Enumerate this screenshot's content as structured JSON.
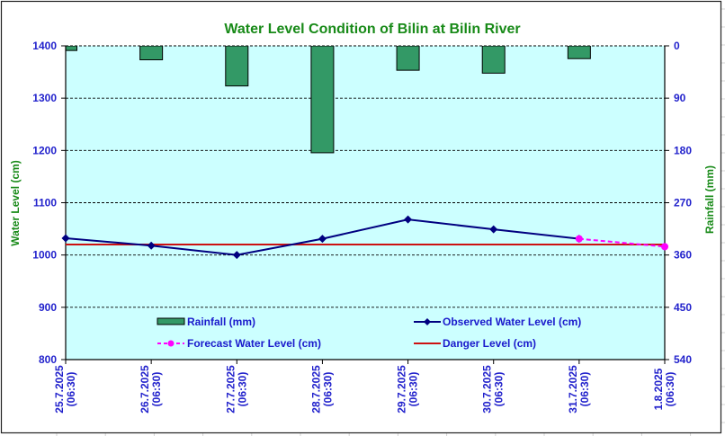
{
  "chart_data": {
    "type": "bar+line",
    "title": "Water Level Condition of Bilin at Bilin River",
    "ylabel": "Water Level (cm)",
    "y2label": "Rainfall (mm)",
    "xlabel": "",
    "ylim": [
      800,
      1400
    ],
    "yticks": [
      1400,
      1300,
      1200,
      1100,
      1000,
      900,
      800
    ],
    "y2lim": [
      0,
      540
    ],
    "y2_inverted": true,
    "y2ticks": [
      0,
      90,
      180,
      270,
      360,
      450,
      540
    ],
    "grid": true,
    "legend_position": "inside-bottom",
    "categories": [
      {
        "date": "25.7.2025",
        "time": "(06:30)"
      },
      {
        "date": "26.7.2025",
        "time": "(06:30)"
      },
      {
        "date": "27.7.2025",
        "time": "(06:30)"
      },
      {
        "date": "28.7.2025",
        "time": "(06:30)"
      },
      {
        "date": "29.7.2025",
        "time": "(06:30)"
      },
      {
        "date": "30.7.2025",
        "time": "(06:30)"
      },
      {
        "date": "31.7.2025",
        "time": "(06:30)"
      },
      {
        "date": "1.8.2025",
        "time": "(06:30)"
      }
    ],
    "series": [
      {
        "name": "Rainfall (mm)",
        "kind": "bar",
        "axis": "right",
        "color": "#339966",
        "values": [
          8,
          24,
          69,
          184,
          42,
          47,
          22,
          null
        ]
      },
      {
        "name": "Observed Water Level (cm)",
        "kind": "line",
        "axis": "left",
        "color": "#000080",
        "marker": "diamond",
        "values": [
          1032,
          1018,
          1000,
          1031,
          1068,
          1049,
          1031,
          null
        ]
      },
      {
        "name": "Forecast Water Level (cm)",
        "kind": "dashed-line",
        "axis": "left",
        "color": "#FF00FF",
        "marker": "circle",
        "values": [
          null,
          null,
          null,
          null,
          null,
          null,
          1031,
          1016
        ]
      },
      {
        "name": "Danger Level (cm)",
        "kind": "constant-line",
        "axis": "left",
        "color": "#CC1111",
        "value": 1020
      }
    ],
    "legend": [
      {
        "label": "Rainfall (mm)",
        "series": 0
      },
      {
        "label": "Observed Water Level (cm)",
        "series": 1
      },
      {
        "label": "Forecast Water Level (cm)",
        "series": 2
      },
      {
        "label": "Danger Level (cm)",
        "series": 3
      }
    ],
    "colors": {
      "title": "#188A18",
      "axis_title": "#188A18",
      "tick_label": "#2222CC",
      "legend_text": "#1A1ACC",
      "plot_background": "#CCFFFF"
    }
  }
}
